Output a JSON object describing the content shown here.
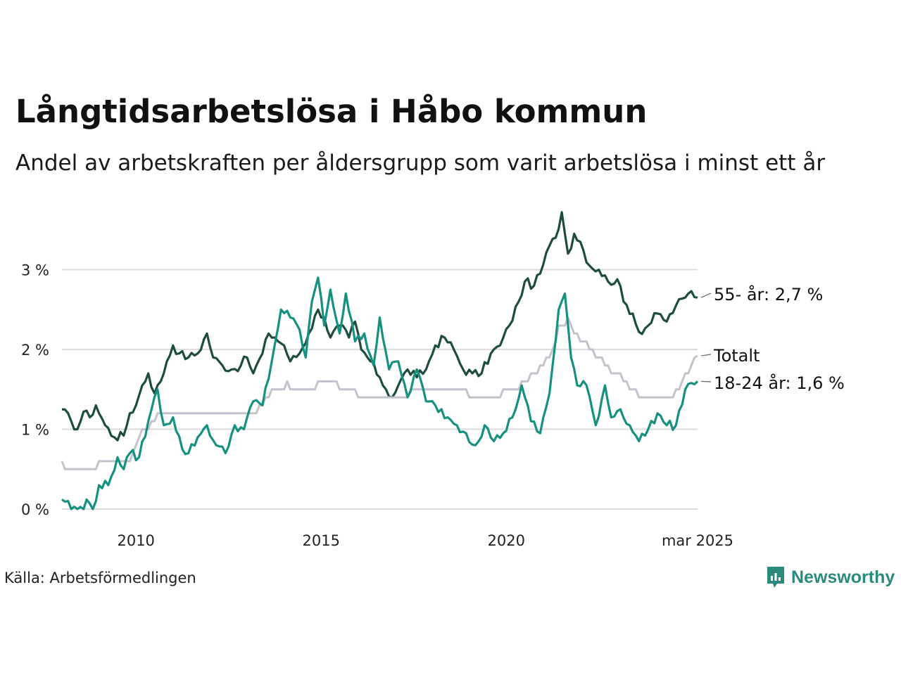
{
  "header": {
    "title": "Långtidsarbetslösa i Håbo kommun",
    "subtitle": "Andel av arbetskraften per åldersgrupp som varit arbetslösa i minst ett år"
  },
  "footer": {
    "source": "Källa: Arbetsförmedlingen",
    "brand": "Newsworthy"
  },
  "colors": {
    "series_55": "#1e4d40",
    "series_18_24": "#16917f",
    "series_total": "#c4c2cc",
    "grid": "#dcdce0",
    "brand": "#2c8a7c"
  },
  "chart_data": {
    "type": "line",
    "x_start": "2008-01",
    "x_end": "2025-03",
    "x_step": "month",
    "xticks": [
      {
        "x": "2010-01",
        "label": "2010"
      },
      {
        "x": "2015-01",
        "label": "2015"
      },
      {
        "x": "2020-01",
        "label": "2020"
      },
      {
        "x": "2025-03",
        "label": "mar 2025"
      }
    ],
    "yticks": [
      {
        "y": 0,
        "label": "0 %"
      },
      {
        "y": 1,
        "label": "1 %"
      },
      {
        "y": 2,
        "label": "2 %"
      },
      {
        "y": 3,
        "label": "3 %"
      }
    ],
    "ylim": [
      0,
      3.8
    ],
    "grid": true,
    "series": [
      {
        "name": "55- år",
        "end_label": "55- år: 2,7 %",
        "color": "#1e4d40",
        "keypoints": [
          [
            "2008-01",
            1.25
          ],
          [
            "2008-04",
            1.1
          ],
          [
            "2008-06",
            1.0
          ],
          [
            "2008-08",
            1.22
          ],
          [
            "2008-10",
            1.15
          ],
          [
            "2008-12",
            1.3
          ],
          [
            "2009-03",
            1.05
          ],
          [
            "2009-06",
            0.9
          ],
          [
            "2009-09",
            0.92
          ],
          [
            "2009-11",
            1.2
          ],
          [
            "2010-01",
            1.3
          ],
          [
            "2010-03",
            1.55
          ],
          [
            "2010-05",
            1.7
          ],
          [
            "2010-07",
            1.45
          ],
          [
            "2010-09",
            1.6
          ],
          [
            "2010-11",
            1.85
          ],
          [
            "2011-01",
            2.05
          ],
          [
            "2011-03",
            1.95
          ],
          [
            "2011-06",
            1.9
          ],
          [
            "2011-09",
            1.95
          ],
          [
            "2011-12",
            2.2
          ],
          [
            "2012-02",
            1.9
          ],
          [
            "2012-05",
            1.8
          ],
          [
            "2012-08",
            1.75
          ],
          [
            "2012-11",
            1.8
          ],
          [
            "2013-01",
            1.9
          ],
          [
            "2013-03",
            1.7
          ],
          [
            "2013-06",
            1.95
          ],
          [
            "2013-08",
            2.2
          ],
          [
            "2013-10",
            2.15
          ],
          [
            "2014-01",
            2.05
          ],
          [
            "2014-03",
            1.85
          ],
          [
            "2014-06",
            1.95
          ],
          [
            "2014-09",
            2.2
          ],
          [
            "2014-12",
            2.5
          ],
          [
            "2015-02",
            2.4
          ],
          [
            "2015-04",
            2.15
          ],
          [
            "2015-07",
            2.3
          ],
          [
            "2015-10",
            2.15
          ],
          [
            "2015-12",
            2.35
          ],
          [
            "2016-02",
            2.0
          ],
          [
            "2016-05",
            1.85
          ],
          [
            "2016-08",
            1.65
          ],
          [
            "2016-10",
            1.5
          ],
          [
            "2016-12",
            1.4
          ],
          [
            "2017-02",
            1.55
          ],
          [
            "2017-05",
            1.75
          ],
          [
            "2017-08",
            1.65
          ],
          [
            "2017-11",
            1.75
          ],
          [
            "2018-02",
            2.05
          ],
          [
            "2018-05",
            2.15
          ],
          [
            "2018-08",
            2.0
          ],
          [
            "2018-11",
            1.75
          ],
          [
            "2019-02",
            1.7
          ],
          [
            "2019-05",
            1.7
          ],
          [
            "2019-08",
            1.95
          ],
          [
            "2019-11",
            2.05
          ],
          [
            "2020-02",
            2.3
          ],
          [
            "2020-05",
            2.6
          ],
          [
            "2020-07",
            2.85
          ],
          [
            "2020-10",
            2.8
          ],
          [
            "2020-12",
            2.95
          ],
          [
            "2021-03",
            3.3
          ],
          [
            "2021-05",
            3.4
          ],
          [
            "2021-07",
            3.72
          ],
          [
            "2021-09",
            3.2
          ],
          [
            "2021-11",
            3.45
          ],
          [
            "2022-01",
            3.35
          ],
          [
            "2022-04",
            3.05
          ],
          [
            "2022-07",
            3.0
          ],
          [
            "2022-10",
            2.85
          ],
          [
            "2023-01",
            2.88
          ],
          [
            "2023-03",
            2.6
          ],
          [
            "2023-06",
            2.45
          ],
          [
            "2023-08",
            2.22
          ],
          [
            "2023-11",
            2.3
          ],
          [
            "2024-02",
            2.45
          ],
          [
            "2024-05",
            2.35
          ],
          [
            "2024-08",
            2.55
          ],
          [
            "2024-11",
            2.65
          ],
          [
            "2025-01",
            2.73
          ],
          [
            "2025-03",
            2.65
          ]
        ]
      },
      {
        "name": "Totalt",
        "end_label": "Totalt",
        "color": "#c4c2cc",
        "keypoints": [
          [
            "2008-01",
            0.55
          ],
          [
            "2008-06",
            0.45
          ],
          [
            "2008-09",
            0.45
          ],
          [
            "2009-01",
            0.55
          ],
          [
            "2009-06",
            0.62
          ],
          [
            "2009-12",
            0.65
          ],
          [
            "2010-03",
            0.95
          ],
          [
            "2010-08",
            1.15
          ],
          [
            "2011-03",
            1.15
          ],
          [
            "2011-09",
            1.2
          ],
          [
            "2012-03",
            1.2
          ],
          [
            "2012-09",
            1.15
          ],
          [
            "2013-03",
            1.2
          ],
          [
            "2013-09",
            1.45
          ],
          [
            "2014-02",
            1.55
          ],
          [
            "2014-06",
            1.5
          ],
          [
            "2014-12",
            1.55
          ],
          [
            "2015-06",
            1.55
          ],
          [
            "2015-12",
            1.45
          ],
          [
            "2016-06",
            1.4
          ],
          [
            "2016-12",
            1.35
          ],
          [
            "2017-06",
            1.45
          ],
          [
            "2017-12",
            1.5
          ],
          [
            "2018-06",
            1.5
          ],
          [
            "2018-12",
            1.45
          ],
          [
            "2019-06",
            1.4
          ],
          [
            "2019-12",
            1.45
          ],
          [
            "2020-06",
            1.55
          ],
          [
            "2020-12",
            1.75
          ],
          [
            "2021-03",
            1.9
          ],
          [
            "2021-06",
            2.25
          ],
          [
            "2021-09",
            2.35
          ],
          [
            "2021-12",
            2.15
          ],
          [
            "2022-03",
            2.05
          ],
          [
            "2022-07",
            1.9
          ],
          [
            "2022-10",
            1.75
          ],
          [
            "2023-01",
            1.7
          ],
          [
            "2023-04",
            1.55
          ],
          [
            "2023-08",
            1.42
          ],
          [
            "2023-12",
            1.4
          ],
          [
            "2024-05",
            1.35
          ],
          [
            "2024-09",
            1.5
          ],
          [
            "2025-01",
            1.8
          ],
          [
            "2025-03",
            1.92
          ]
        ]
      },
      {
        "name": "18-24 år",
        "end_label": "18-24 år: 1,6 %",
        "color": "#16917f",
        "keypoints": [
          [
            "2008-01",
            0.12
          ],
          [
            "2008-03",
            0.1
          ],
          [
            "2008-04",
            0.0
          ],
          [
            "2008-08",
            0.0
          ],
          [
            "2008-09",
            0.12
          ],
          [
            "2008-11",
            0.0
          ],
          [
            "2009-01",
            0.3
          ],
          [
            "2009-04",
            0.3
          ],
          [
            "2009-07",
            0.65
          ],
          [
            "2009-09",
            0.5
          ],
          [
            "2009-11",
            0.7
          ],
          [
            "2010-02",
            0.65
          ],
          [
            "2010-05",
            1.1
          ],
          [
            "2010-08",
            1.5
          ],
          [
            "2010-10",
            1.05
          ],
          [
            "2011-01",
            1.15
          ],
          [
            "2011-04",
            0.75
          ],
          [
            "2011-06",
            0.7
          ],
          [
            "2011-09",
            0.9
          ],
          [
            "2011-12",
            1.05
          ],
          [
            "2012-03",
            0.8
          ],
          [
            "2012-06",
            0.7
          ],
          [
            "2012-09",
            1.05
          ],
          [
            "2012-12",
            1.0
          ],
          [
            "2013-03",
            1.35
          ],
          [
            "2013-06",
            1.3
          ],
          [
            "2013-09",
            1.85
          ],
          [
            "2013-12",
            2.5
          ],
          [
            "2014-03",
            2.4
          ],
          [
            "2014-06",
            2.25
          ],
          [
            "2014-08",
            1.9
          ],
          [
            "2014-10",
            2.6
          ],
          [
            "2014-12",
            2.9
          ],
          [
            "2015-02",
            2.3
          ],
          [
            "2015-04",
            2.75
          ],
          [
            "2015-07",
            2.2
          ],
          [
            "2015-09",
            2.7
          ],
          [
            "2015-12",
            2.1
          ],
          [
            "2016-03",
            2.2
          ],
          [
            "2016-06",
            1.8
          ],
          [
            "2016-08",
            2.4
          ],
          [
            "2016-11",
            1.75
          ],
          [
            "2017-02",
            1.85
          ],
          [
            "2017-05",
            1.4
          ],
          [
            "2017-08",
            1.75
          ],
          [
            "2017-11",
            1.35
          ],
          [
            "2018-02",
            1.3
          ],
          [
            "2018-06",
            1.15
          ],
          [
            "2018-09",
            1.05
          ],
          [
            "2018-12",
            0.95
          ],
          [
            "2019-03",
            0.8
          ],
          [
            "2019-06",
            1.05
          ],
          [
            "2019-09",
            0.85
          ],
          [
            "2019-12",
            0.95
          ],
          [
            "2020-03",
            1.15
          ],
          [
            "2020-06",
            1.55
          ],
          [
            "2020-09",
            1.1
          ],
          [
            "2020-12",
            0.95
          ],
          [
            "2021-03",
            1.45
          ],
          [
            "2021-06",
            2.5
          ],
          [
            "2021-08",
            2.7
          ],
          [
            "2021-10",
            1.9
          ],
          [
            "2021-12",
            1.55
          ],
          [
            "2022-03",
            1.55
          ],
          [
            "2022-06",
            1.05
          ],
          [
            "2022-09",
            1.55
          ],
          [
            "2022-11",
            1.15
          ],
          [
            "2023-02",
            1.25
          ],
          [
            "2023-05",
            1.05
          ],
          [
            "2023-08",
            0.85
          ],
          [
            "2023-11",
            1.0
          ],
          [
            "2024-02",
            1.2
          ],
          [
            "2024-05",
            1.05
          ],
          [
            "2024-08",
            1.05
          ],
          [
            "2024-11",
            1.5
          ],
          [
            "2025-01",
            1.58
          ],
          [
            "2025-03",
            1.6
          ]
        ]
      }
    ]
  }
}
